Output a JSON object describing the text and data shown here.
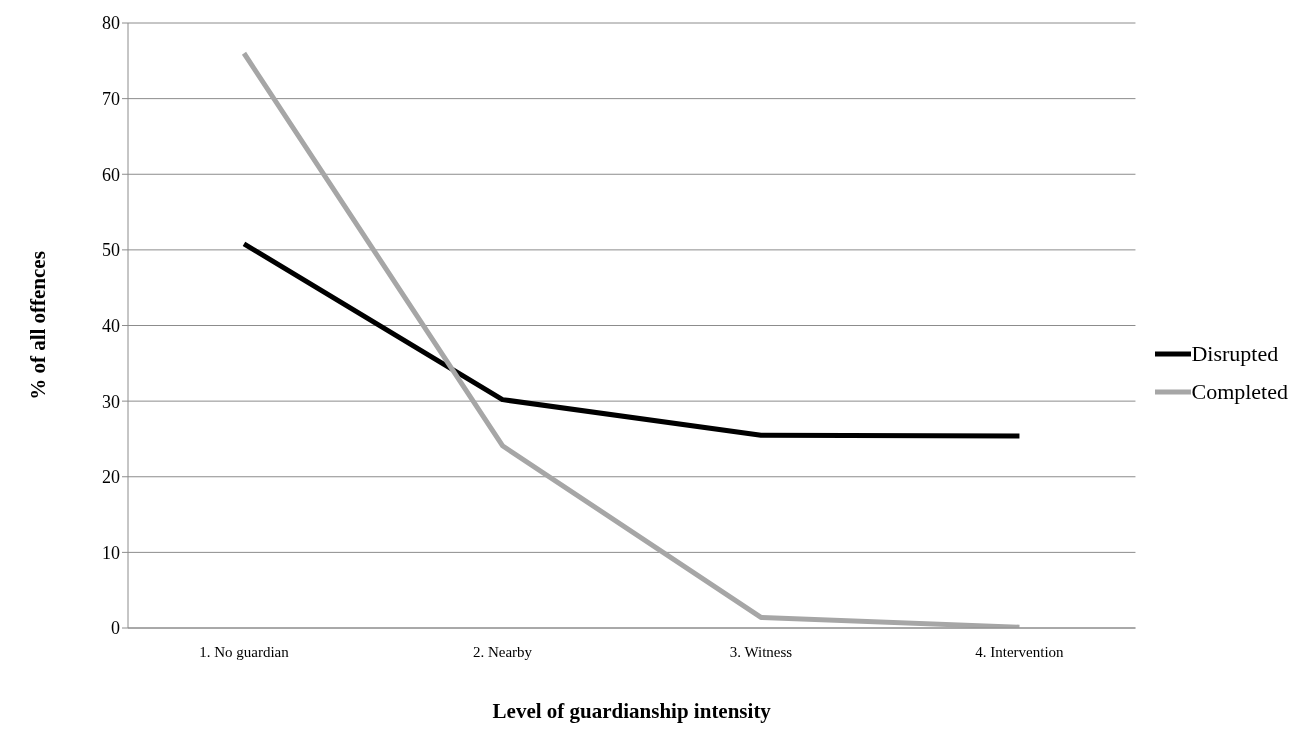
{
  "chart_data": {
    "type": "line",
    "xlabel": "Level of guardianship intensity",
    "ylabel": "% of  all offences",
    "categories": [
      "1. No guardian",
      "2. Nearby",
      "3. Witness",
      "4. Intervention"
    ],
    "series": [
      {
        "name": "Disrupted",
        "color": "#000000",
        "values": [
          50.8,
          30.2,
          25.5,
          25.4
        ]
      },
      {
        "name": "Completed",
        "color": "#a6a6a6",
        "values": [
          76,
          24.1,
          1.4,
          0.1
        ]
      }
    ],
    "ylim": [
      0,
      80
    ],
    "yticks": [
      0,
      10,
      20,
      30,
      40,
      50,
      60,
      70,
      80
    ],
    "grid": "y",
    "legend": "right",
    "marker": "none",
    "line_style": "solid"
  }
}
